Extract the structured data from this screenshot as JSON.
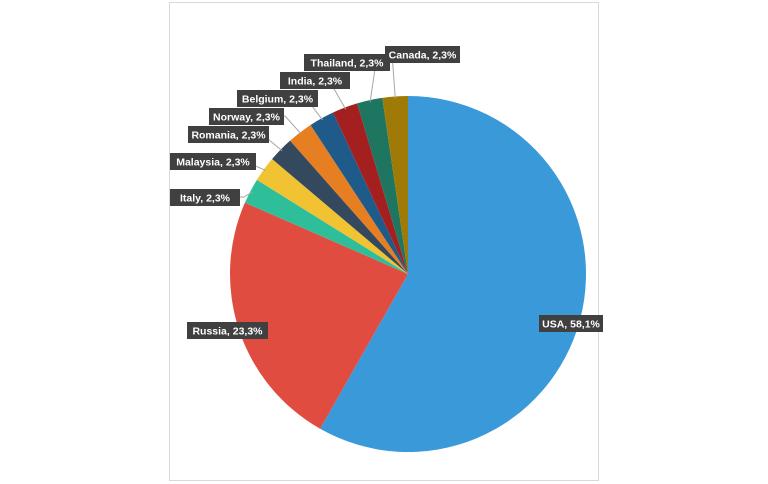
{
  "chart_data": {
    "type": "pie",
    "title": "",
    "label_format": "{name}, {pct}",
    "slices": [
      {
        "name": "USA",
        "value": 58.1,
        "label": "58,1%",
        "color": "#3a99d8"
      },
      {
        "name": "Russia",
        "value": 23.3,
        "label": "23,3%",
        "color": "#e04c40"
      },
      {
        "name": "Italy",
        "value": 2.3,
        "label": "2,3%",
        "color": "#2fbe9a"
      },
      {
        "name": "Malaysia",
        "value": 2.3,
        "label": "2,3%",
        "color": "#f1c232"
      },
      {
        "name": "Romania",
        "value": 2.3,
        "label": "2,3%",
        "color": "#34495e"
      },
      {
        "name": "Norway",
        "value": 2.3,
        "label": "2,3%",
        "color": "#e67e22"
      },
      {
        "name": "Belgium",
        "value": 2.3,
        "label": "2,3%",
        "color": "#1e5a8a"
      },
      {
        "name": "India",
        "value": 2.3,
        "label": "2,3%",
        "color": "#a41f1f"
      },
      {
        "name": "Thailand",
        "value": 2.3,
        "label": "2,3%",
        "color": "#1e7560"
      },
      {
        "name": "Canada",
        "value": 2.3,
        "label": "2,3%",
        "color": "#a07a07"
      }
    ]
  }
}
